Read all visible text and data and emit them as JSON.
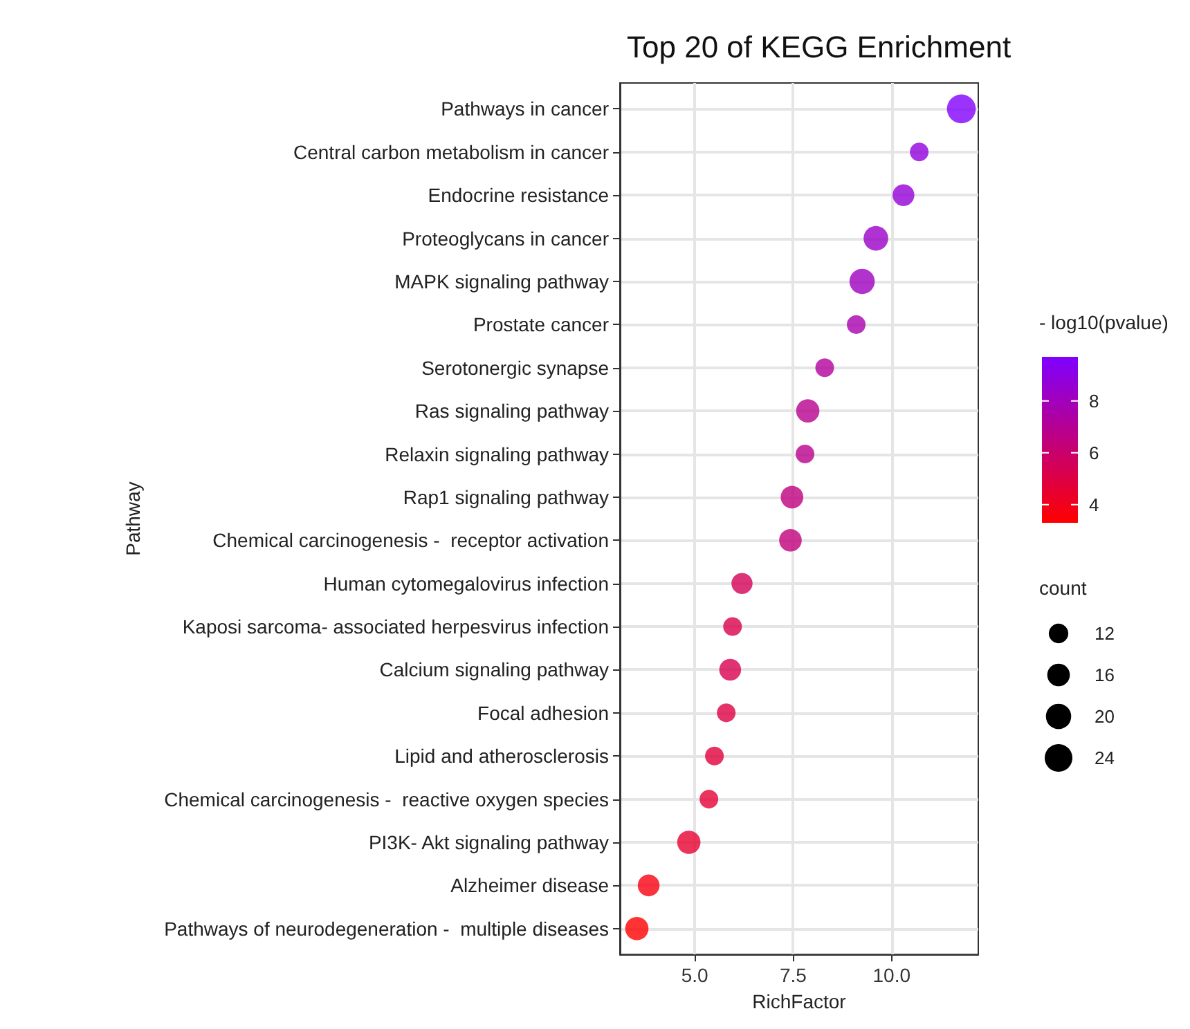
{
  "chart_data": {
    "type": "bubble",
    "orientation": "horizontal",
    "title": "Top 20 of KEGG Enrichment",
    "xlabel": "RichFactor",
    "ylabel": "Pathway",
    "legend_title": "count",
    "clabel": "- log10(pvalue)",
    "categories": [
      "Pathways in cancer",
      "Central carbon metabolism in cancer",
      "Endocrine resistance",
      "Proteoglycans in cancer",
      "MAPK signaling pathway",
      "Prostate cancer",
      "Serotonergic synapse",
      "Ras signaling pathway",
      "Relaxin signaling pathway",
      "Rap1 signaling pathway",
      "Chemical carcinogenesis -  receptor activation",
      "Human cytomegalovirus infection",
      "Kaposi sarcoma- associated herpesvirus infection",
      "Calcium signaling pathway",
      "Focal adhesion",
      "Lipid and atherosclerosis",
      "Chemical carcinogenesis -  reactive oxygen species",
      "PI3K- Akt signaling pathway",
      "Alzheimer disease",
      "Pathways of neurodegeneration -  multiple diseases"
    ],
    "values": [
      11.77,
      10.7,
      10.3,
      9.6,
      9.25,
      9.1,
      8.3,
      7.87,
      7.8,
      7.47,
      7.43,
      6.2,
      5.96,
      5.9,
      5.8,
      5.5,
      5.36,
      4.85,
      3.83,
      3.53
    ],
    "sizes": [
      26,
      11,
      15,
      19,
      20,
      11,
      11,
      17,
      11,
      16,
      16,
      14,
      11,
      15,
      11,
      11,
      11,
      17,
      15,
      17
    ],
    "cvalues": [
      9.6,
      8.8,
      8.7,
      8.3,
      8.1,
      7.7,
      7.2,
      6.9,
      6.8,
      6.5,
      6.4,
      5.5,
      5.2,
      5.3,
      5.0,
      4.8,
      4.6,
      4.5,
      3.7,
      3.3
    ],
    "size_legend": [
      12,
      16,
      20,
      24
    ],
    "clim": [
      3.3,
      9.7
    ],
    "cticks": [
      4,
      6,
      8
    ],
    "xlim": [
      3.1,
      12.2
    ],
    "xticks": [
      {
        "value": 5,
        "label": "5.0"
      },
      {
        "value": 7.5,
        "label": "7.5"
      },
      {
        "value": 10,
        "label": "10.0"
      }
    ],
    "grid": true
  }
}
